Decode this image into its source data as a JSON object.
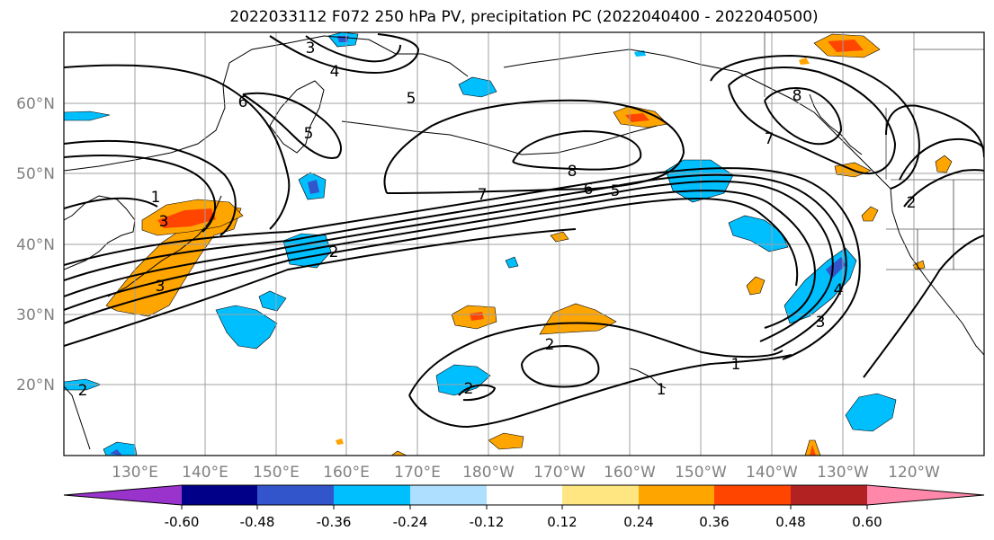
{
  "title": "2022033112 F072 250 hPa PV, precipitation PC (2022040400 - 2022040500)",
  "map": {
    "lat_labels": [
      "60°N",
      "50°N",
      "40°N",
      "30°N",
      "20°N"
    ],
    "lon_labels": [
      "130°E",
      "140°E",
      "150°E",
      "160°E",
      "170°E",
      "180°W",
      "170°W",
      "160°W",
      "150°W",
      "140°W",
      "130°W",
      "120°W"
    ],
    "contour_labels": [
      "3",
      "4",
      "6",
      "5",
      "5",
      "8",
      "8",
      "7",
      "7",
      "6",
      "5",
      "1",
      "2",
      "2",
      "1",
      "3",
      "4",
      "3",
      "2",
      "2",
      "1",
      "2",
      "3"
    ],
    "grid_color": "#a0a0a0"
  },
  "colorbar": {
    "colors": [
      "#9933cc",
      "#000088",
      "#3355cc",
      "#00bfff",
      "#aedfff",
      "#ffffff",
      "#ffe680",
      "#ffa500",
      "#ff4500",
      "#b22222",
      "#ff88aa"
    ],
    "tick_labels": [
      "-0.60",
      "-0.48",
      "-0.36",
      "-0.24",
      "-0.12",
      "0.12",
      "0.24",
      "0.36",
      "0.48",
      "0.60"
    ]
  }
}
